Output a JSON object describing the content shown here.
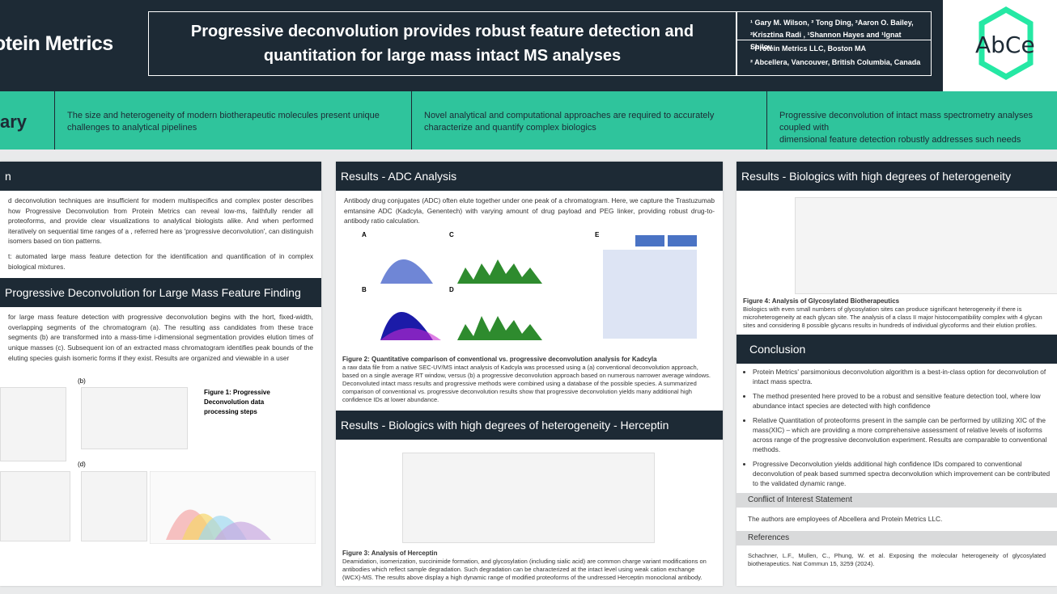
{
  "header": {
    "logo_left": "otein Metrics",
    "title": "Progressive deconvolution provides robust feature detection and quantitation for large mass intact MS analyses",
    "authors": "¹ Gary M. Wilson, ² Tong Ding, ²Aaron O. Bailey, ²Krisztina Radi , ¹Shannon Hayes and ¹Ignat Shilov",
    "affiliations": [
      "¹ Protein Metrics LLC, Boston MA",
      "² Abcellera, Vancouver, British Columbia, Canada"
    ],
    "logo_right": "AbCe"
  },
  "summary": {
    "label": "ary",
    "items": [
      "The size and heterogeneity of modern biotherapeutic molecules present unique\nchallenges to analytical pipelines",
      "Novel analytical and computational approaches are required to accurately\ncharacterize and quantify complex biologics",
      "Progressive deconvolution of intact mass spectrometry analyses coupled with\ndimensional feature detection robustly addresses such needs"
    ]
  },
  "column1": {
    "intro_header": "n",
    "intro_text": "d deconvolution techniques are insufficient for modern multispecifics and complex poster describes how Progressive Deconvolution from Protein Metrics can reveal low-ms, faithfully render all proteoforms, and provide clear visualizations to analytical biologists alike. And when performed iteratively on sequential time ranges of a , referred here as 'progressive deconvolution', can distinguish isomers based on tion patterns.",
    "intro_goal": "t: automated large mass feature detection for the identification and quantification of in complex biological mixtures.",
    "method_header": "Progressive Deconvolution for Large Mass Feature Finding",
    "method_text": "for large mass feature detection with progressive deconvolution begins with the hort, fixed-width, overlapping segments of the chromatogram (a). The resulting ass candidates from these trace segments (b) are transformed into a mass-time i-dimensional segmentation provides elution times of unique masses (c). Subsequent ion of an extracted mass chromatogram identifies peak bounds of the eluting species guish isomeric forms if they exist. Results are organized and viewable in a user",
    "fig1_caption": "Figure 1: Progressive Deconvolution data processing steps",
    "fig1_labels": [
      "(b)",
      "(d)"
    ]
  },
  "column2": {
    "adc_header": "Results - ADC Analysis",
    "adc_text": "Antibody drug conjugates (ADC) often elute together under one peak of a chromatogram. Here, we capture the Trastuzumab emtansine ADC (Kadcyla, Genentech) with varying amount of drug payload and PEG linker, providing robust drug-to-antibody ratio calculation.",
    "fig2_panels": [
      "A",
      "B",
      "C",
      "D",
      "E"
    ],
    "fig2_title": "Figure 2: Quantitative comparison of conventional vs. progressive deconvolution analysis for Kadcyla",
    "fig2_text": "a raw data file from a native SEC-UV/MS intact analysis of Kadcyla was processed using a (a) conventional deconvolution approach, based on a single average RT window, versus (b) a progressive deconvolution approach based on numerous narrower average windows. Deconvoluted intact mass results and progressive methods were combined using a database of the possible species. A summarized comparison of conventional vs. progressive deconvolution results show that progressive deconvolution yields many additional high confidence IDs at lower abundance.",
    "herceptin_header": "Results - Biologics with high degrees of heterogeneity - Herceptin",
    "fig3_title": "Figure 3: Analysis of Herceptin",
    "fig3_text": "Deamidation, isomerization, succinimide formation, and glycosylation (including sialic acid) are common charge variant modifications on antibodies which reflect sample degradation. Such degradation can be characterized at the intact level using weak cation exchange (WCX)-MS. The results above display a high dynamic range of modified proteoforms of the undressed Herceptin monoclonal antibody."
  },
  "column3": {
    "het_header": "Results - Biologics with high degrees of heterogeneity",
    "fig4_title": "Figure 4: Analysis of Glycosylated Biotherapeutics",
    "fig4_text": "Biologics with even small numbers of glycosylation sites can produce significant heterogeneity if there is microheterogeneity at each glycan site. The analysis of a class II major histocompatibility complex with 4 glycan sites and considering 8 possible glycans results in hundreds of individual glycoforms and their elution profiles.",
    "conclusion_header": "Conclusion",
    "conclusions": [
      "Protein Metrics' parsimonious deconvolution algorithm is a best-in-class option for deconvolution of intact mass spectra.",
      "The method presented here proved to be a robust and sensitive feature detection tool, where low abundance intact species are detected with high confidence",
      "Relative Quantitation of proteoforms present in the sample can be performed by utilizing XIC of the mass(XIC) – which are providing a more comprehensive assessment of relative levels of isoforms across range of the progressive deconvolution experiment. Results are comparable to conventional methods.",
      "Progressive Deconvolution yields additional high confidence IDs compared to conventional deconvolution of peak based summed spectra deconvolution which improvement can be contributed to the validated dynamic range."
    ],
    "coi_header": "Conflict of Interest Statement",
    "coi_text": "The authors are employees of Abcellera and Protein Metrics LLC.",
    "ref_header": "References",
    "ref_text": "Schachner, L.F., Mullen, C., Phung, W. et al. Exposing the molecular heterogeneity of glycosylated biotherapeutics. Nat Commun 15, 3259 (2024)."
  }
}
